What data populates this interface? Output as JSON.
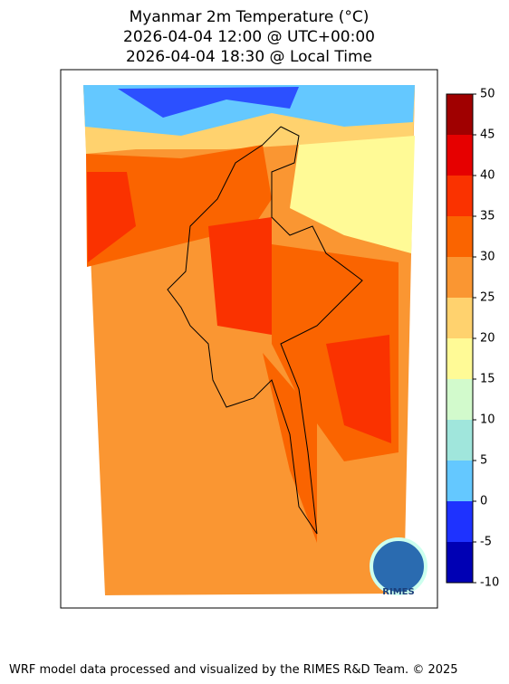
{
  "title": [
    "Myanmar 2m Temperature (°C)",
    "2026-04-04 12:00 @ UTC+00:00",
    "2026-04-04 18:30 @ Local Time"
  ],
  "colorbar": {
    "range": [
      -10,
      50
    ],
    "ticks": [
      -10,
      -5,
      0,
      5,
      10,
      15,
      20,
      25,
      30,
      35,
      40,
      45,
      50
    ],
    "colors": [
      "#0000b4",
      "#1e32ff",
      "#64c8ff",
      "#a0e6dc",
      "#d2facc",
      "#fffa96",
      "#ffd26e",
      "#fa9632",
      "#fa6400",
      "#fa3200",
      "#e60000",
      "#a00000"
    ]
  },
  "logo_text": "RIMES",
  "footer": "WRF model data processed and visualized by the RIMES R&D Team. © 2025"
}
